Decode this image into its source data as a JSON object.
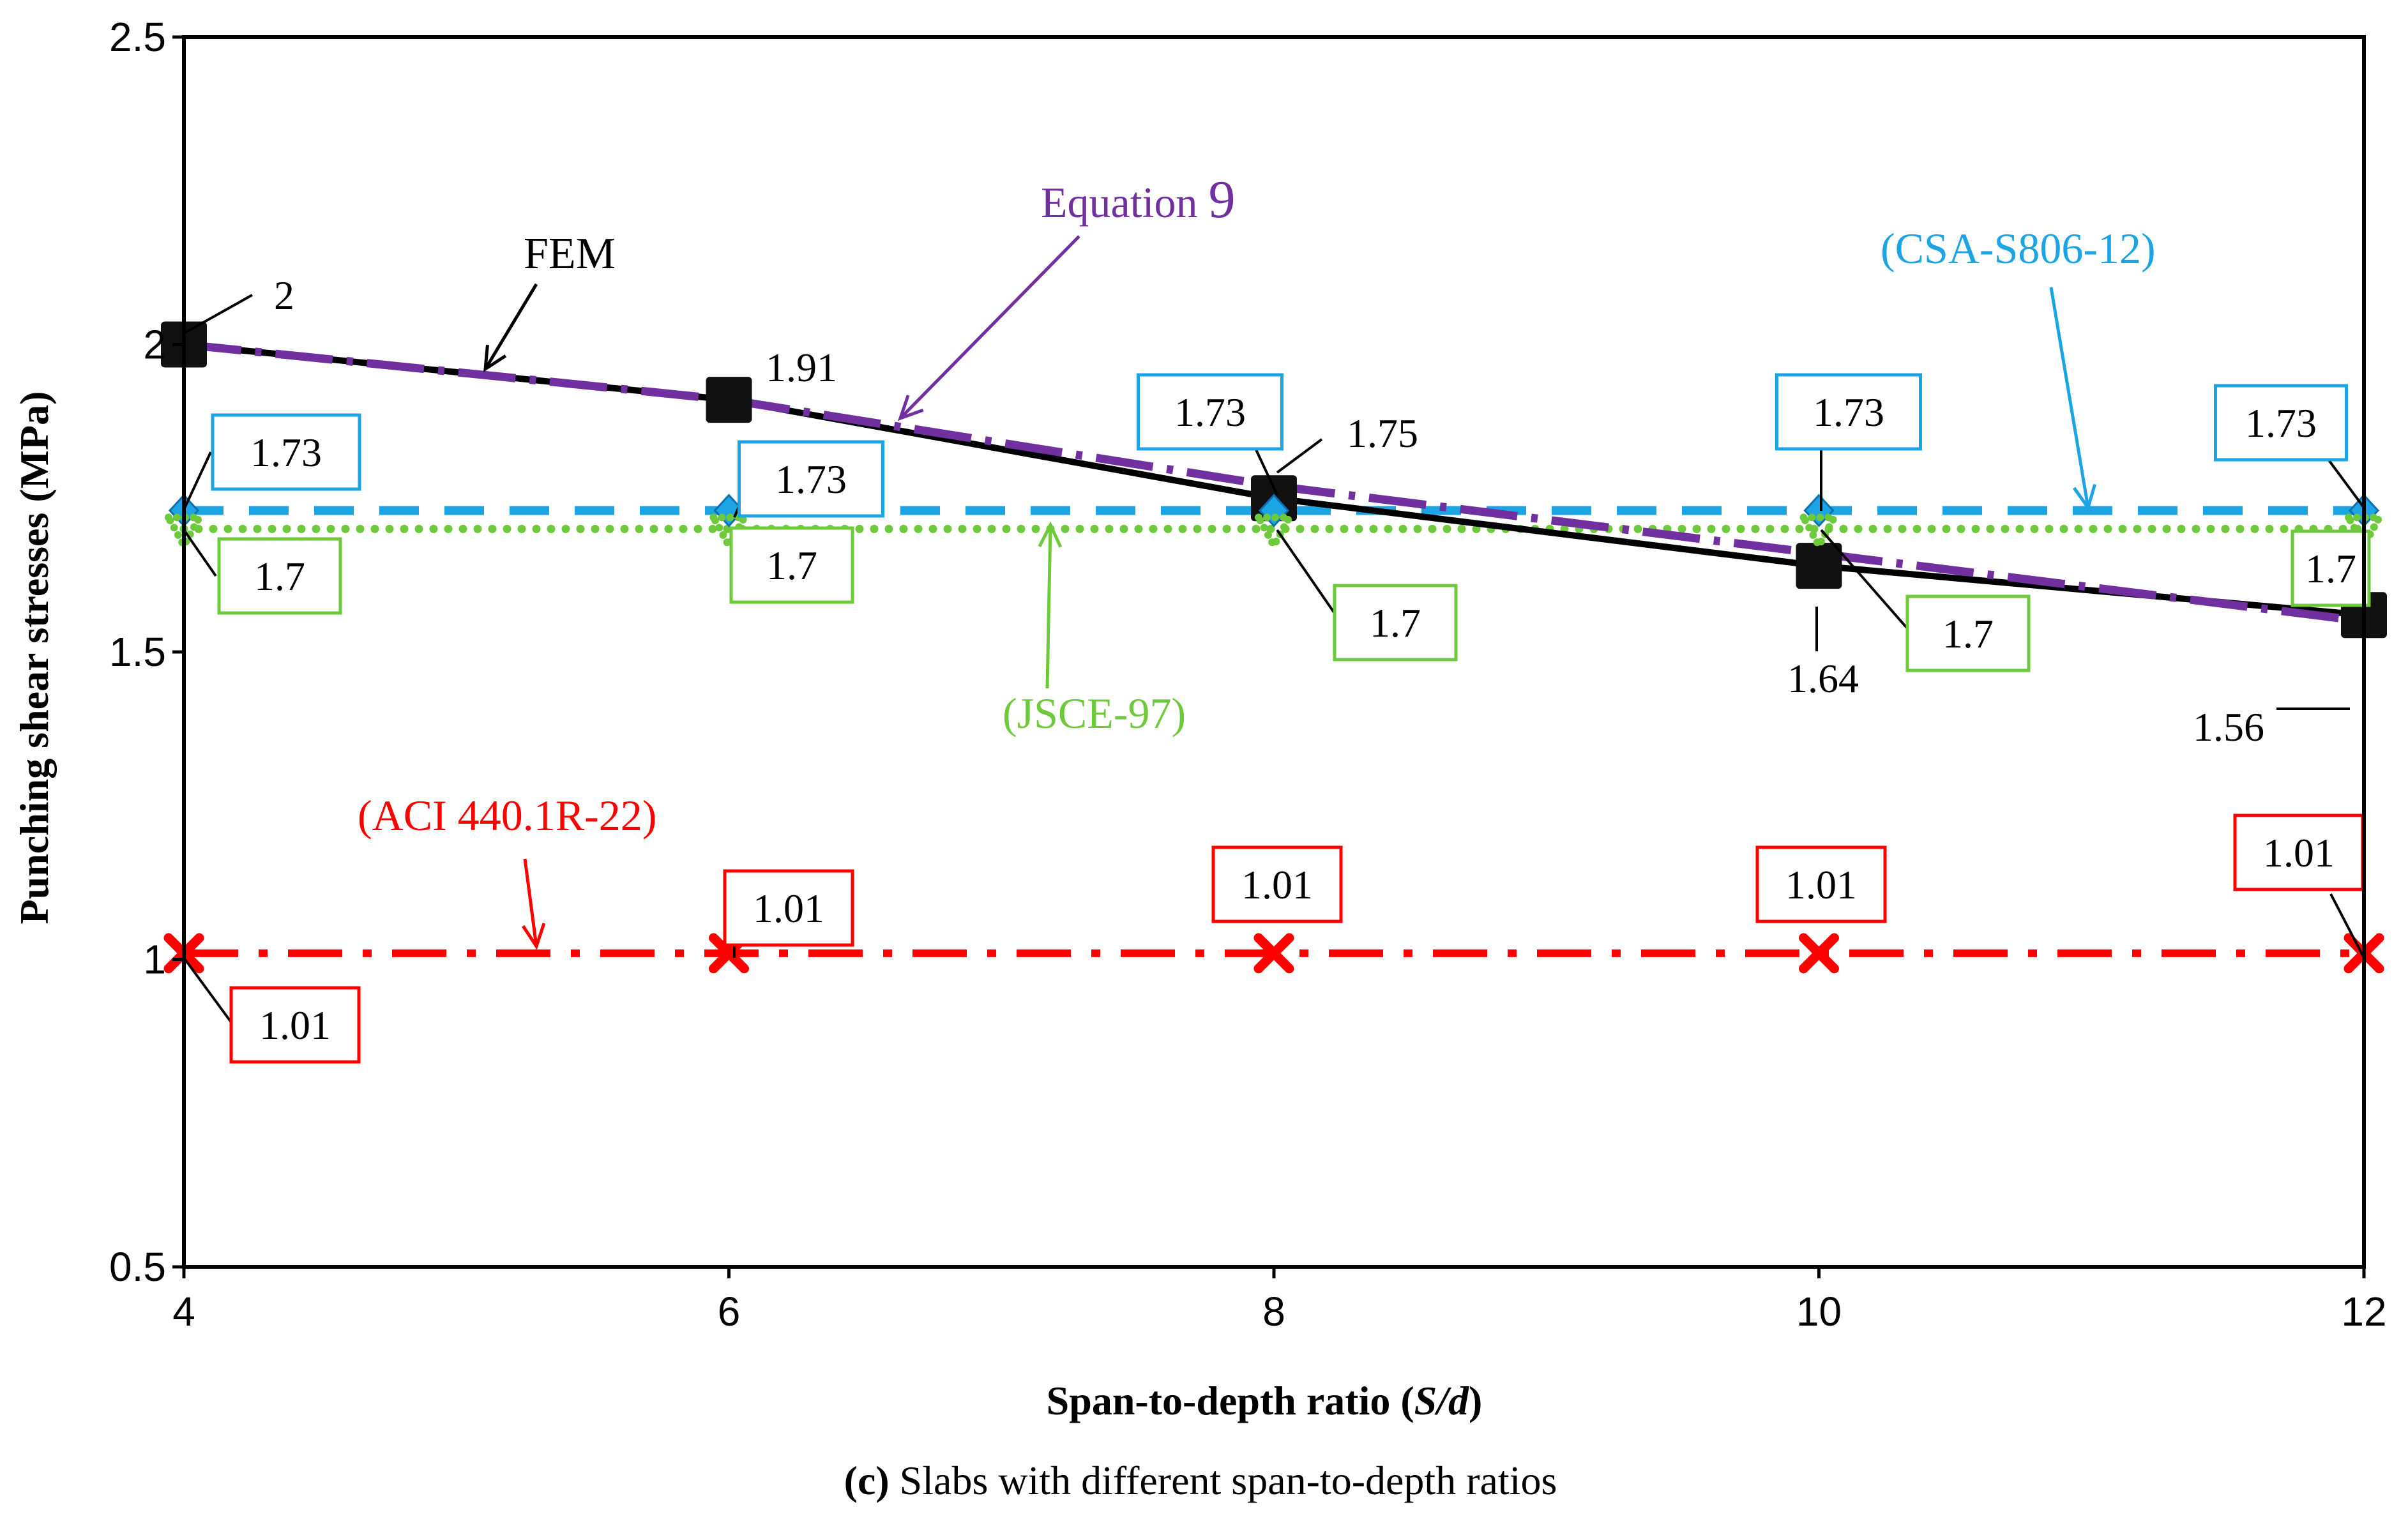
{
  "chart_data": {
    "type": "line",
    "xlabel_prefix": "Span-to-depth ratio (",
    "xlabel_italic": "S/d",
    "xlabel_suffix": ")",
    "ylabel": "Punching shear stresses (MPa)",
    "caption_bold": "(c)",
    "caption_rest": " Slabs with different span-to-depth ratios",
    "xlim": [
      4,
      12
    ],
    "ylim": [
      0.5,
      2.5
    ],
    "x_ticks": [
      "4",
      "6",
      "8",
      "10",
      "12"
    ],
    "y_ticks": [
      "0.5",
      "1",
      "1.5",
      "2",
      "2.5"
    ],
    "x": [
      4,
      6,
      8,
      10,
      12
    ],
    "series": [
      {
        "name": "FEM",
        "values": [
          2.0,
          1.91,
          1.75,
          1.64,
          1.56
        ],
        "color": "#000000",
        "point_labels": [
          "2",
          "1.91",
          "1.75",
          "1.64",
          "1.56"
        ]
      },
      {
        "name": "Equation 9",
        "values": [
          2.0,
          1.91,
          1.77,
          1.66,
          1.55
        ],
        "color": "#7030a0"
      },
      {
        "name": "CSA-S806-12",
        "values": [
          1.73,
          1.73,
          1.73,
          1.73,
          1.73
        ],
        "color": "#1da4e4",
        "point_labels": [
          "1.73",
          "1.73",
          "1.73",
          "1.73",
          "1.73"
        ]
      },
      {
        "name": "JSCE-97",
        "values": [
          1.7,
          1.7,
          1.7,
          1.7,
          1.7
        ],
        "color": "#6ec93c",
        "point_labels": [
          "1.7",
          "1.7",
          "1.7",
          "1.7",
          "1.7"
        ]
      },
      {
        "name": "ACI 440.1R-22",
        "values": [
          1.01,
          1.01,
          1.01,
          1.01,
          1.01
        ],
        "color": "#ff0000",
        "point_labels": [
          "1.01",
          "1.01",
          "1.01",
          "1.01",
          "1.01"
        ]
      }
    ],
    "annotations": {
      "fem": "FEM",
      "equation_prefix": "Equation ",
      "equation_num": "9",
      "csa": "(CSA-S806-12)",
      "jsce": "(JSCE-97)",
      "aci": "(ACI 440.1R-22)"
    }
  }
}
